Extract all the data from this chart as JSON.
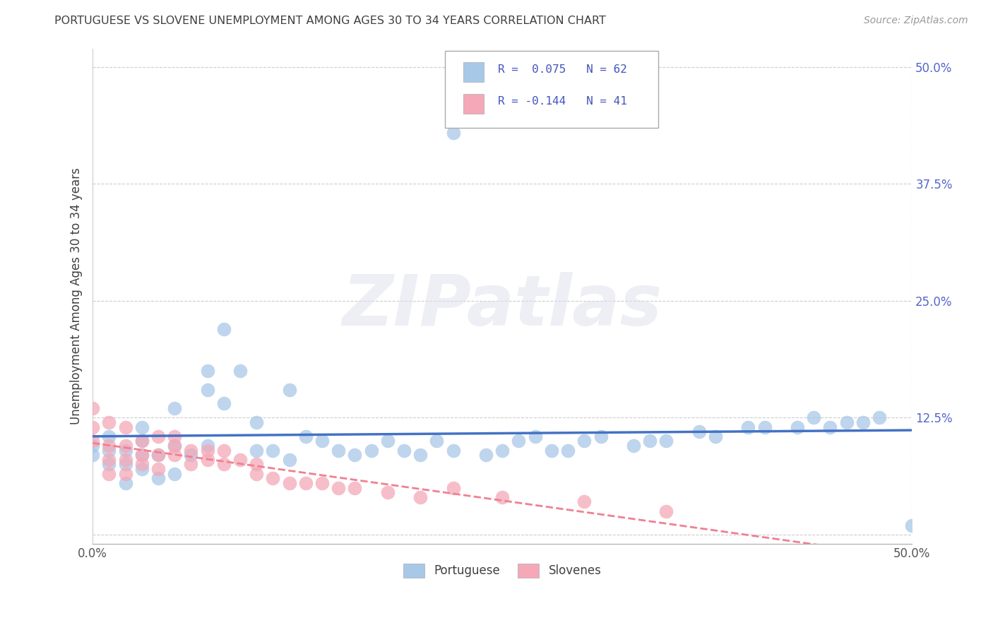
{
  "title": "PORTUGUESE VS SLOVENE UNEMPLOYMENT AMONG AGES 30 TO 34 YEARS CORRELATION CHART",
  "source": "Source: ZipAtlas.com",
  "ylabel": "Unemployment Among Ages 30 to 34 years",
  "xlim": [
    0.0,
    0.5
  ],
  "ylim": [
    -0.01,
    0.52
  ],
  "ytick_vals": [
    0.0,
    0.125,
    0.25,
    0.375,
    0.5
  ],
  "ytick_labels": [
    "",
    "12.5%",
    "25.0%",
    "37.5%",
    "50.0%"
  ],
  "xtick_vals": [
    0.0,
    0.5
  ],
  "xtick_labels": [
    "0.0%",
    "50.0%"
  ],
  "portuguese_color": "#a8c8e8",
  "slovene_color": "#f4a8b8",
  "portuguese_line_color": "#4472c4",
  "slovene_line_color": "#f08090",
  "legend_R1": "R =  0.075",
  "legend_N1": "N = 62",
  "legend_R2": "R = -0.144",
  "legend_N2": "N = 41",
  "legend_label1": "Portuguese",
  "legend_label2": "Slovenes",
  "watermark_text": "ZIPatlas",
  "port_x": [
    0.0,
    0.0,
    0.01,
    0.01,
    0.01,
    0.02,
    0.02,
    0.02,
    0.03,
    0.03,
    0.03,
    0.03,
    0.04,
    0.04,
    0.05,
    0.05,
    0.05,
    0.06,
    0.07,
    0.07,
    0.07,
    0.08,
    0.08,
    0.09,
    0.1,
    0.1,
    0.11,
    0.12,
    0.12,
    0.13,
    0.14,
    0.15,
    0.16,
    0.17,
    0.18,
    0.19,
    0.2,
    0.21,
    0.22,
    0.22,
    0.24,
    0.25,
    0.26,
    0.27,
    0.28,
    0.29,
    0.3,
    0.31,
    0.33,
    0.34,
    0.35,
    0.37,
    0.38,
    0.4,
    0.41,
    0.43,
    0.44,
    0.45,
    0.46,
    0.47,
    0.48,
    0.5
  ],
  "port_y": [
    0.085,
    0.095,
    0.075,
    0.09,
    0.105,
    0.055,
    0.075,
    0.09,
    0.07,
    0.085,
    0.1,
    0.115,
    0.06,
    0.085,
    0.095,
    0.065,
    0.135,
    0.085,
    0.095,
    0.155,
    0.175,
    0.14,
    0.22,
    0.175,
    0.09,
    0.12,
    0.09,
    0.08,
    0.155,
    0.105,
    0.1,
    0.09,
    0.085,
    0.09,
    0.1,
    0.09,
    0.085,
    0.1,
    0.09,
    0.43,
    0.085,
    0.09,
    0.1,
    0.105,
    0.09,
    0.09,
    0.1,
    0.105,
    0.095,
    0.1,
    0.1,
    0.11,
    0.105,
    0.115,
    0.115,
    0.115,
    0.125,
    0.115,
    0.12,
    0.12,
    0.125,
    0.01
  ],
  "slov_x": [
    0.0,
    0.0,
    0.0,
    0.01,
    0.01,
    0.01,
    0.01,
    0.02,
    0.02,
    0.02,
    0.02,
    0.03,
    0.03,
    0.03,
    0.04,
    0.04,
    0.04,
    0.05,
    0.05,
    0.05,
    0.06,
    0.06,
    0.07,
    0.07,
    0.08,
    0.08,
    0.09,
    0.1,
    0.1,
    0.11,
    0.12,
    0.13,
    0.14,
    0.15,
    0.16,
    0.18,
    0.2,
    0.22,
    0.25,
    0.3,
    0.35
  ],
  "slov_y": [
    0.1,
    0.115,
    0.135,
    0.065,
    0.08,
    0.095,
    0.12,
    0.065,
    0.08,
    0.095,
    0.115,
    0.075,
    0.085,
    0.1,
    0.07,
    0.085,
    0.105,
    0.085,
    0.095,
    0.105,
    0.075,
    0.09,
    0.08,
    0.09,
    0.075,
    0.09,
    0.08,
    0.065,
    0.075,
    0.06,
    0.055,
    0.055,
    0.055,
    0.05,
    0.05,
    0.045,
    0.04,
    0.05,
    0.04,
    0.035,
    0.025
  ]
}
